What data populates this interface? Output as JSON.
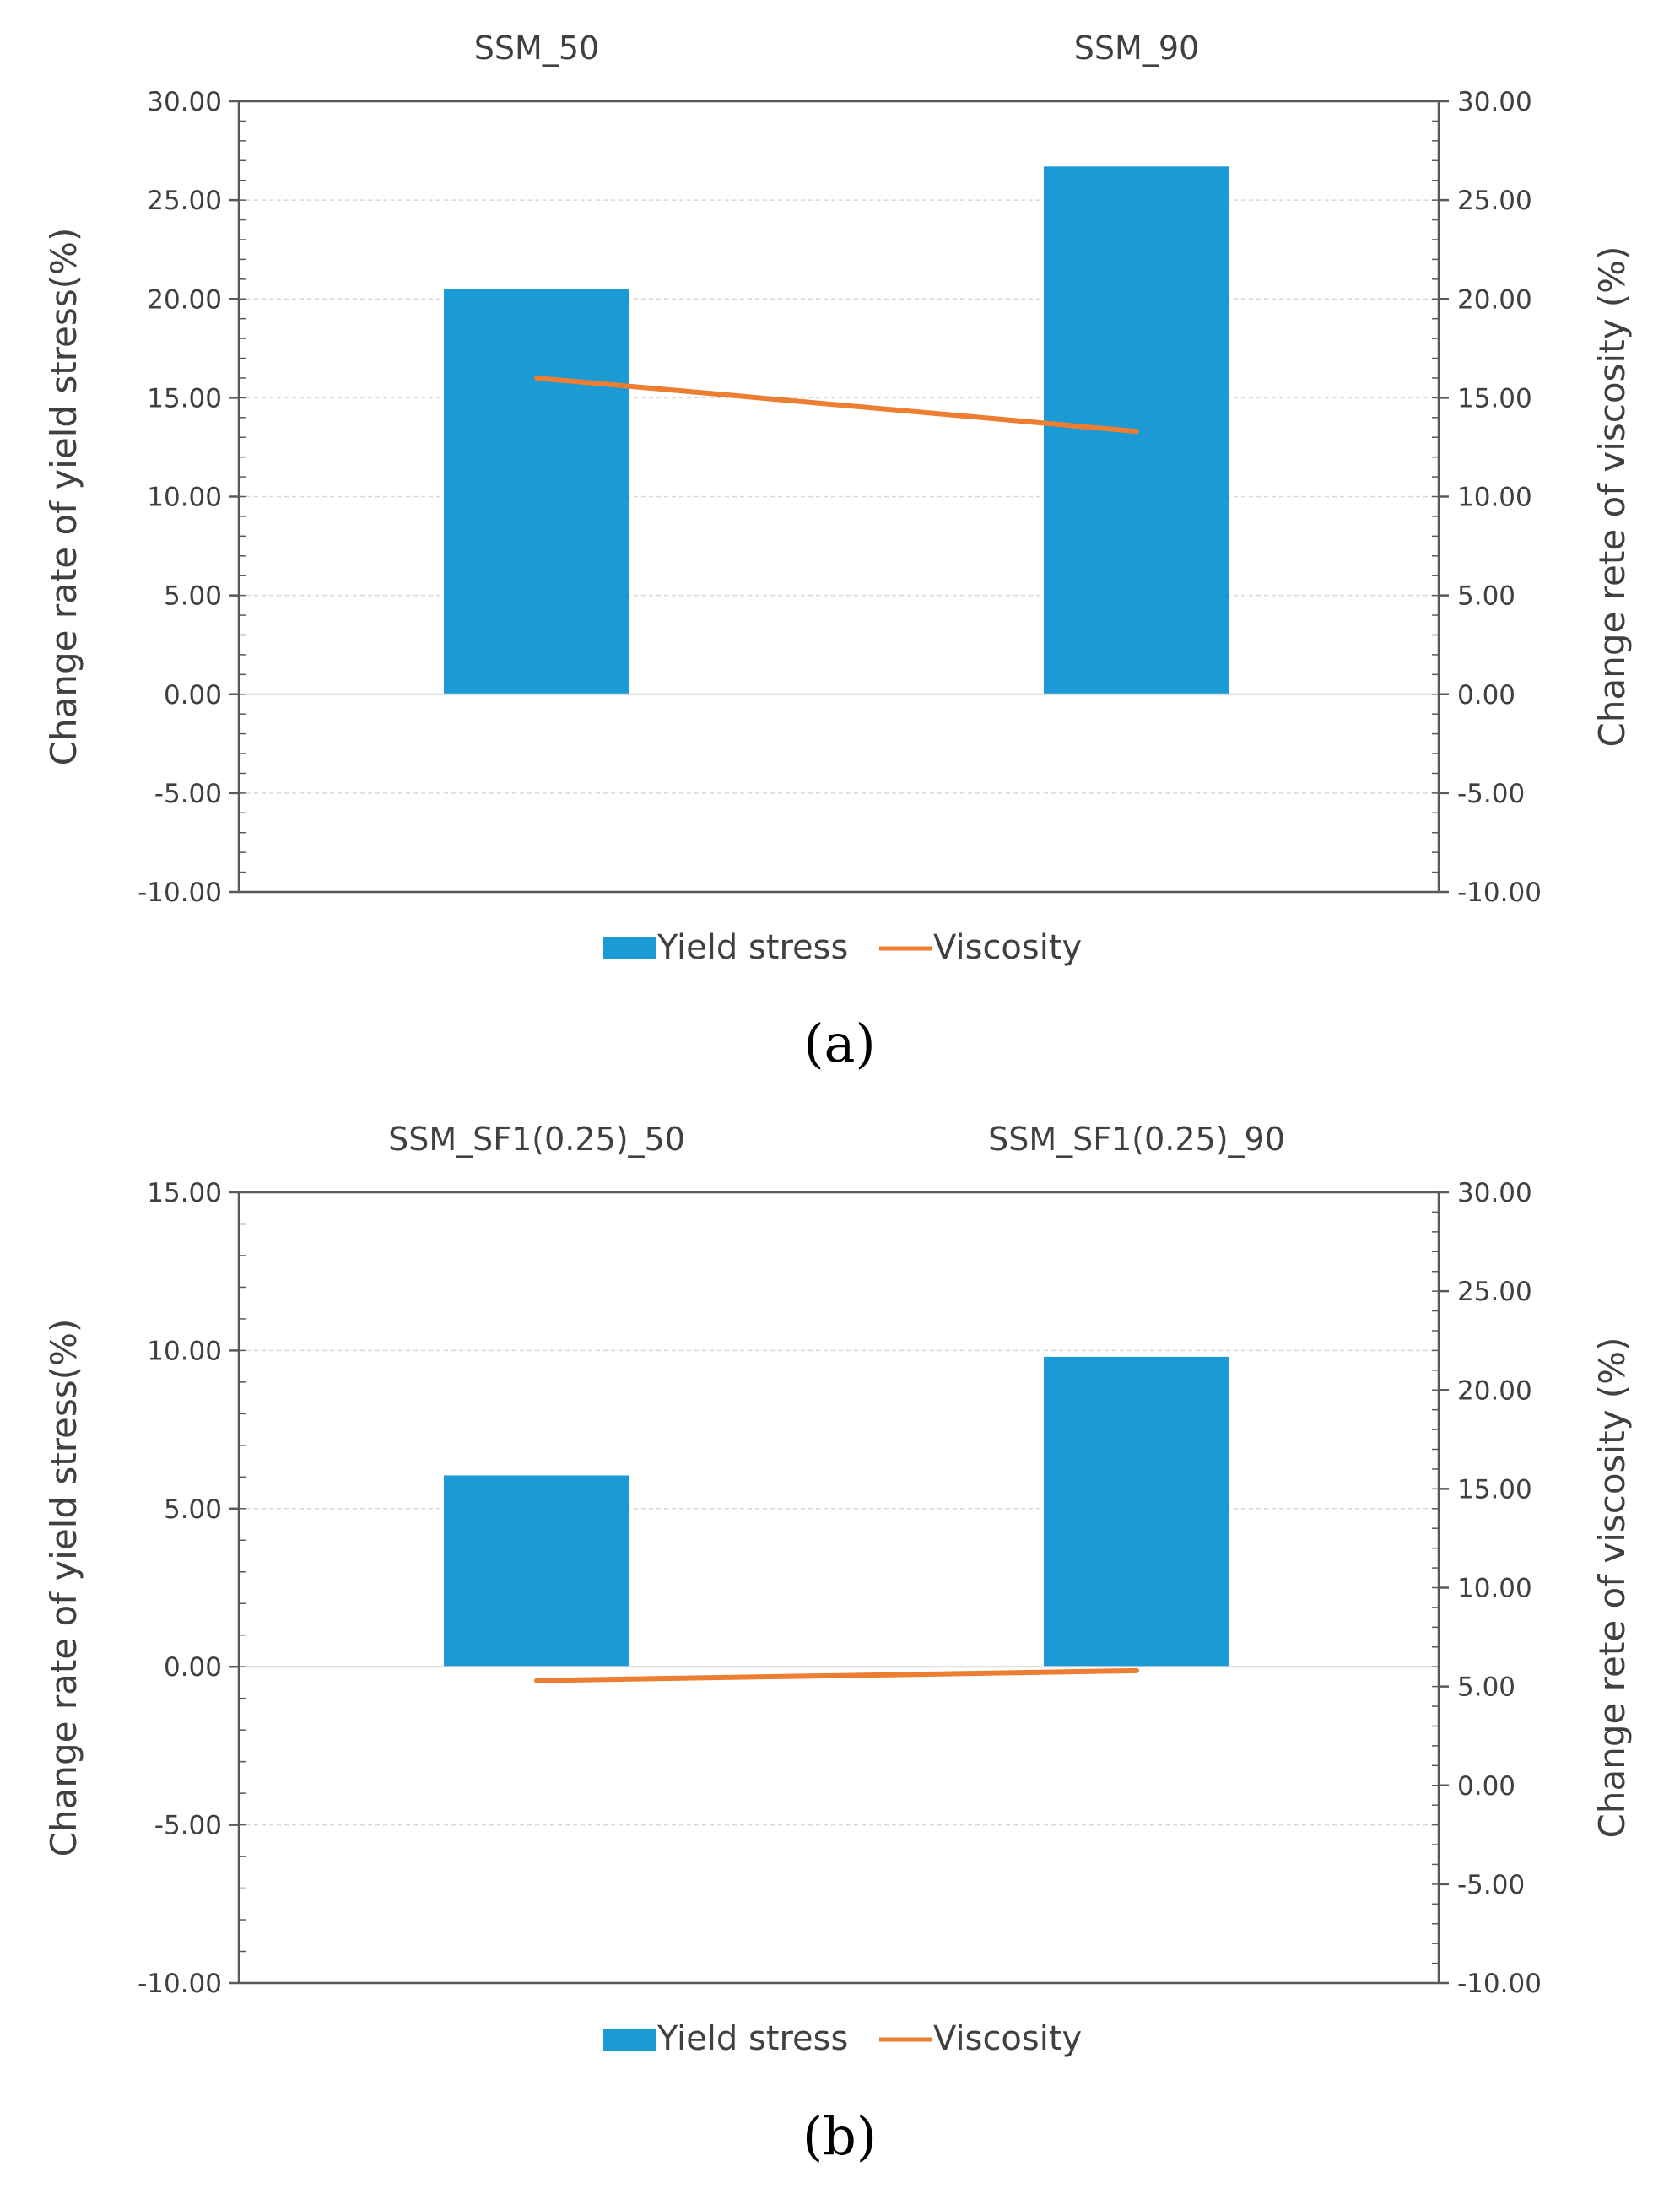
{
  "colors": {
    "bar": "#1b9ad6",
    "line": "#ed7d31",
    "axis": "#595959",
    "grid": "#d9d9d9",
    "text": "#404040"
  },
  "chart_data": [
    {
      "type": "bar+line",
      "panel_label": "(a)",
      "categories": [
        "SSM_50",
        "SSM_90"
      ],
      "series": [
        {
          "name": "Yield stress",
          "kind": "bar",
          "axis": "left",
          "values": [
            20.5,
            26.7
          ]
        },
        {
          "name": "Viscosity",
          "kind": "line",
          "axis": "right",
          "values": [
            16.0,
            13.3
          ]
        }
      ],
      "ylabel": "Change rate of yield stress(%)",
      "y2label": "Change rete of viscosity (%)",
      "ylim": [
        -10,
        30
      ],
      "y2lim": [
        -10,
        30
      ],
      "yticks": [
        "-10.00",
        "-5.00",
        "0.00",
        "5.00",
        "10.00",
        "15.00",
        "20.00",
        "25.00",
        "30.00"
      ],
      "y2ticks": [
        "-10.00",
        "-5.00",
        "0.00",
        "5.00",
        "10.00",
        "15.00",
        "20.00",
        "25.00",
        "30.00"
      ],
      "legend": [
        "Yield stress",
        "Viscosity"
      ],
      "legend_position": "bottom",
      "grid": true
    },
    {
      "type": "bar+line",
      "panel_label": "(b)",
      "categories": [
        "SSM_SF1(0.25)_50",
        "SSM_SF1(0.25)_90"
      ],
      "series": [
        {
          "name": "Yield stress",
          "kind": "bar",
          "axis": "left",
          "values": [
            6.05,
            9.8
          ]
        },
        {
          "name": "Viscosity",
          "kind": "line",
          "axis": "right",
          "values": [
            5.3,
            5.8
          ]
        }
      ],
      "ylabel": "Change rate of yield stress(%)",
      "y2label": "Change rete of viscosity (%)",
      "ylim": [
        -10,
        15
      ],
      "y2lim": [
        -10,
        30
      ],
      "yticks": [
        "-10.00",
        "-5.00",
        "0.00",
        "5.00",
        "10.00",
        "15.00"
      ],
      "y2ticks": [
        "-10.00",
        "-5.00",
        "0.00",
        "5.00",
        "10.00",
        "15.00",
        "20.00",
        "25.00",
        "30.00"
      ],
      "legend": [
        "Yield stress",
        "Viscosity"
      ],
      "legend_position": "bottom",
      "grid": true
    }
  ]
}
